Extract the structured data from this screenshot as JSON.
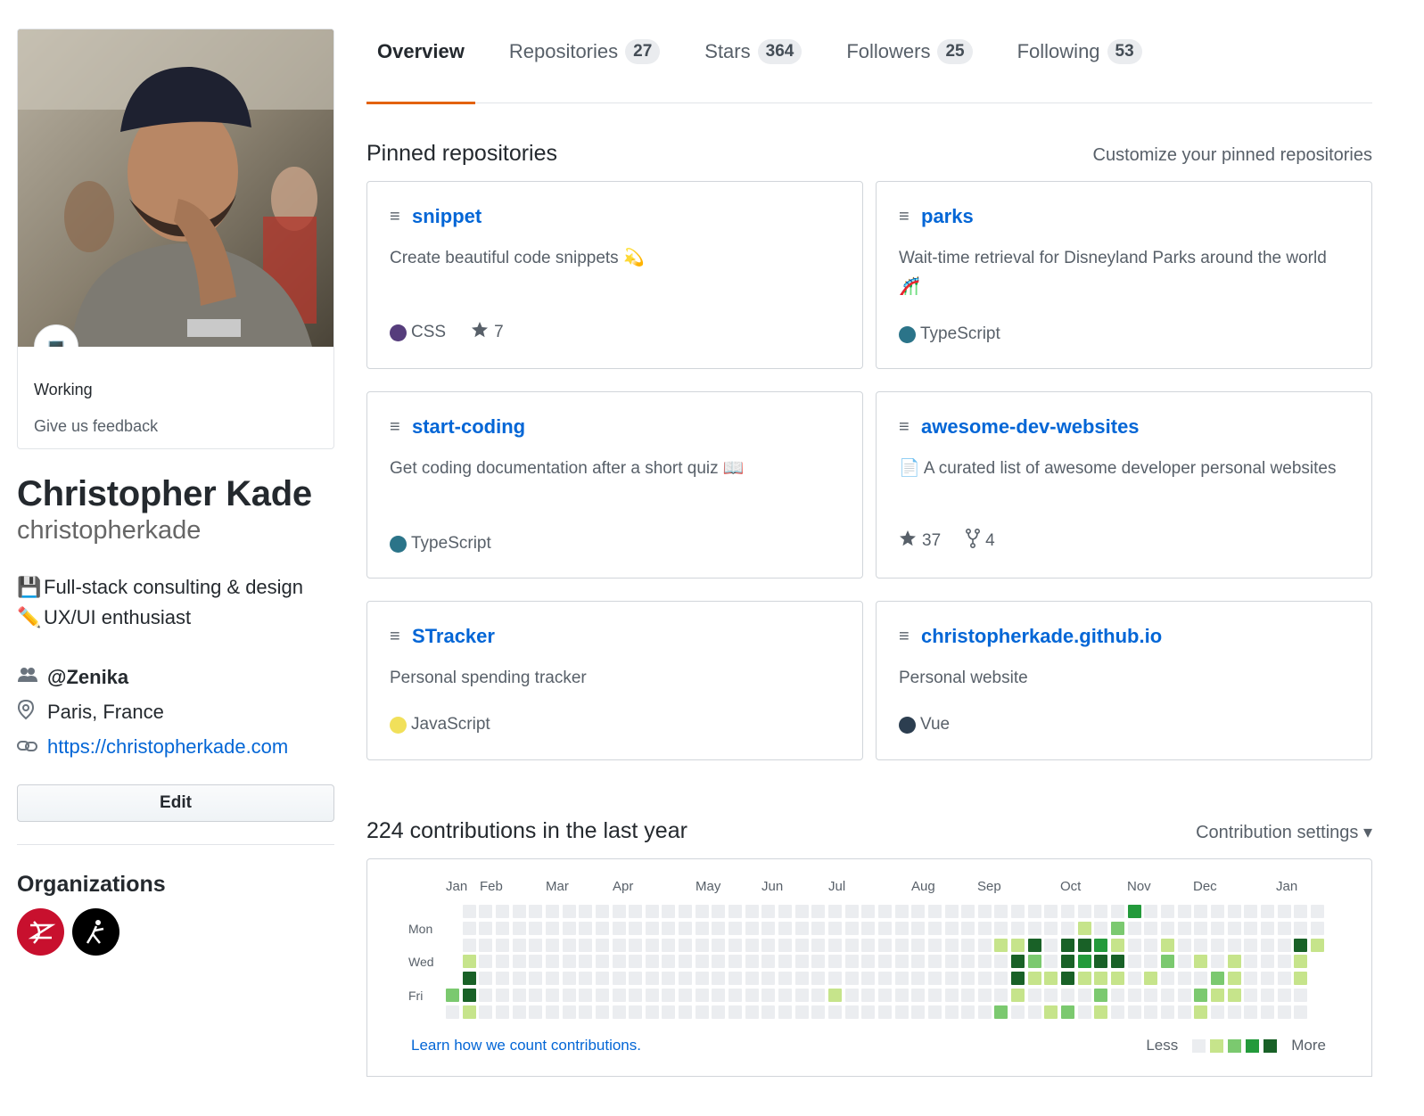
{
  "sidebar": {
    "status_emoji": "💻",
    "status_text": "Working",
    "feedback_text": "Give us feedback",
    "full_name": "Christopher Kade",
    "username": "christopherkade",
    "bio": [
      {
        "emoji": "💾",
        "text": "Full-stack consulting & design"
      },
      {
        "emoji": "✏️",
        "text": "UX/UI enthusiast"
      }
    ],
    "organization": "@Zenika",
    "location": "Paris, France",
    "website": "https://christopherkade.com",
    "edit_label": "Edit",
    "organizations_title": "Organizations"
  },
  "tabs": [
    {
      "label": "Overview",
      "count": null,
      "active": true
    },
    {
      "label": "Repositories",
      "count": "27",
      "active": false
    },
    {
      "label": "Stars",
      "count": "364",
      "active": false
    },
    {
      "label": "Followers",
      "count": "25",
      "active": false
    },
    {
      "label": "Following",
      "count": "53",
      "active": false
    }
  ],
  "pinned": {
    "title": "Pinned repositories",
    "customize_label": "Customize your pinned repositories",
    "repos": [
      {
        "name": "snippet",
        "description": "Create beautiful code snippets 💫",
        "language": "CSS",
        "language_color": "#563d7c",
        "stars": "7",
        "forks": null
      },
      {
        "name": "parks",
        "description": "Wait-time retrieval for Disneyland Parks around the world 🎢",
        "language": "TypeScript",
        "language_color": "#2b7489",
        "stars": null,
        "forks": null
      },
      {
        "name": "start-coding",
        "description": "Get coding documentation after a short quiz 📖",
        "language": "TypeScript",
        "language_color": "#2b7489",
        "stars": null,
        "forks": null
      },
      {
        "name": "awesome-dev-websites",
        "description": "📄 A curated list of awesome developer personal websites",
        "language": null,
        "language_color": null,
        "stars": "37",
        "forks": "4"
      },
      {
        "name": "STracker",
        "description": "Personal spending tracker",
        "language": "JavaScript",
        "language_color": "#f1e05a",
        "stars": null,
        "forks": null
      },
      {
        "name": "christopherkade.github.io",
        "description": "Personal website",
        "language": "Vue",
        "language_color": "#2c3e50",
        "stars": null,
        "forks": null
      }
    ]
  },
  "contributions": {
    "title": "224 contributions in the last year",
    "settings_label": "Contribution settings ▾",
    "months": [
      "Jan",
      "Feb",
      "Mar",
      "Apr",
      "May",
      "Jun",
      "Jul",
      "Aug",
      "Sep",
      "Oct",
      "Nov",
      "Dec",
      "Jan"
    ],
    "days": [
      "Mon",
      "Wed",
      "Fri"
    ],
    "learn_link": "Learn how we count contributions.",
    "legend_less": "Less",
    "legend_more": "More",
    "level_colors": [
      "#ebedf0",
      "#c6e48b",
      "#7bc96f",
      "#239a3b",
      "#196127"
    ]
  }
}
